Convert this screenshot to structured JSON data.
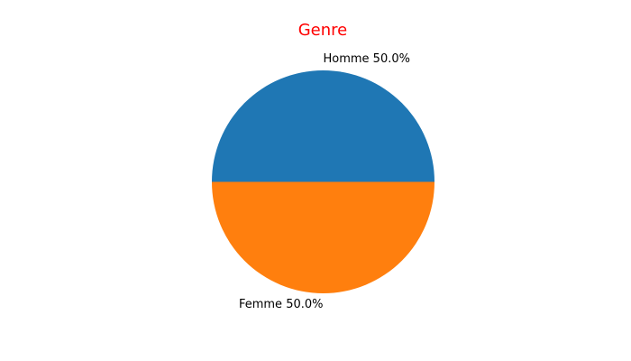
{
  "chart_data": {
    "type": "pie",
    "title": "Genre",
    "title_color": "#ff0000",
    "slices": [
      {
        "label": "Homme",
        "value": 50.0,
        "display": "Homme 50.0%",
        "color": "#1f77b4"
      },
      {
        "label": "Femme",
        "value": 50.0,
        "display": "Femme 50.0%",
        "color": "#ff7f0e"
      }
    ],
    "start_angle_deg": 0,
    "direction": "counterclockwise",
    "legend": "none"
  }
}
